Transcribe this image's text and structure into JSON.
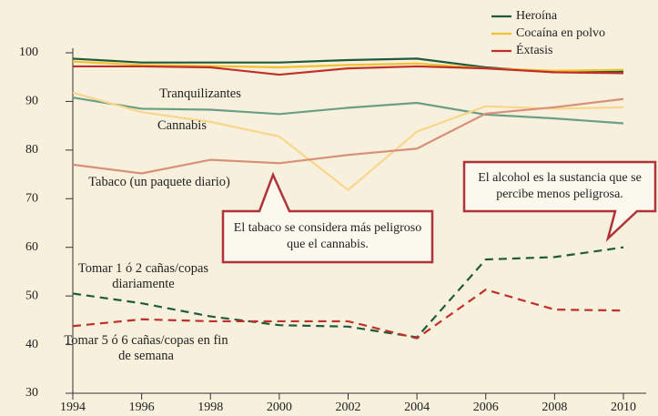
{
  "chart_data": {
    "type": "line",
    "x": [
      1994,
      1996,
      1998,
      2000,
      2002,
      2004,
      2006,
      2008,
      2010
    ],
    "xlim": [
      1994,
      2010
    ],
    "xticks": [
      1994,
      1996,
      1998,
      2000,
      2002,
      2004,
      2006,
      2008,
      2010
    ],
    "ylim": [
      30,
      100
    ],
    "yticks": [
      30,
      40,
      50,
      60,
      70,
      80,
      90,
      100
    ],
    "series": [
      {
        "name": "Heroína",
        "color": "#1f5a3a",
        "legend": true,
        "values": [
          98.8,
          98.0,
          98.0,
          98.0,
          98.5,
          98.8,
          97.0,
          96.0,
          96.2
        ]
      },
      {
        "name": "Cocaína en polvo",
        "color": "#f2c232",
        "legend": true,
        "values": [
          98.2,
          97.5,
          97.3,
          97.0,
          97.5,
          97.8,
          96.8,
          96.3,
          96.5
        ]
      },
      {
        "name": "Éxtasis",
        "color": "#c0302a",
        "legend": true,
        "values": [
          97.2,
          97.2,
          97.0,
          95.5,
          96.8,
          97.2,
          96.8,
          96.0,
          95.8
        ]
      },
      {
        "name": "Tranquilizantes",
        "color": "#6a9e85",
        "values": [
          90.8,
          88.5,
          88.3,
          87.4,
          88.7,
          89.7,
          87.3,
          86.5,
          85.5
        ]
      },
      {
        "name": "Cannabis",
        "color": "#f9d68c",
        "values": [
          91.8,
          87.8,
          85.8,
          82.8,
          71.8,
          83.8,
          89.0,
          88.5,
          88.8
        ]
      },
      {
        "name": "Tabaco (un paquete diario)",
        "color": "#d8907a",
        "values": [
          77.0,
          75.2,
          78.0,
          77.3,
          79.0,
          80.3,
          87.5,
          88.8,
          90.5
        ]
      },
      {
        "name": "Tomar 1 ó 2 cañas/copas diariamente",
        "color": "#1f5a3a",
        "dashed": true,
        "values": [
          50.5,
          48.5,
          45.8,
          44.0,
          43.7,
          41.5,
          57.5,
          58.0,
          60.0
        ]
      },
      {
        "name": "Tomar 5 ó 6 cañas/copas en fin de semana",
        "color": "#c0302a",
        "dashed": true,
        "values": [
          43.8,
          45.2,
          44.8,
          44.8,
          44.8,
          41.3,
          51.3,
          47.2,
          47.0
        ]
      }
    ],
    "annotations": [
      "El tabaco se considera más peligroso que el cannabis.",
      "El alcohol es la sustancia que se percibe menos peligrosa."
    ]
  }
}
